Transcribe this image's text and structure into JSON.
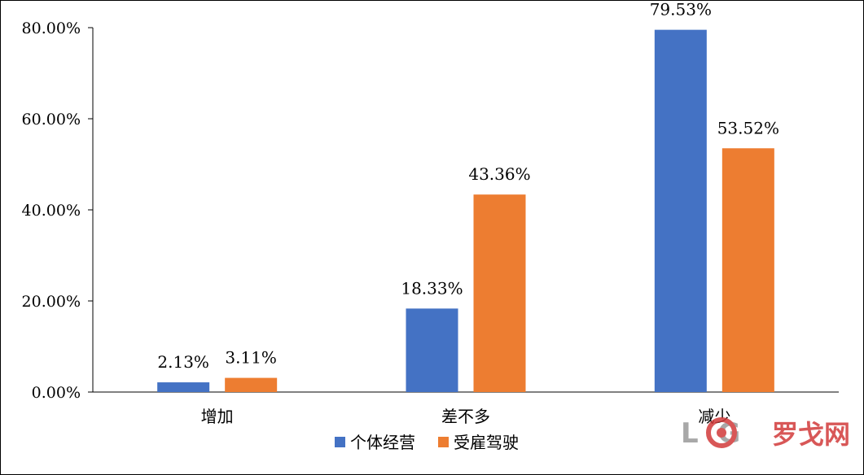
{
  "chart_data": {
    "type": "bar",
    "categories": [
      "增加",
      "差不多",
      "减少"
    ],
    "series": [
      {
        "name": "个体经营",
        "color": "#4472C4",
        "values": [
          2.13,
          18.33,
          79.53
        ],
        "labels": [
          "2.13%",
          "18.33%",
          "79.53%"
        ]
      },
      {
        "name": "受雇驾驶",
        "color": "#ED7D31",
        "values": [
          3.11,
          43.36,
          53.52
        ],
        "labels": [
          "3.11%",
          "43.36%",
          "53.52%"
        ]
      }
    ],
    "y_ticks": [
      0,
      20,
      40,
      60,
      80
    ],
    "y_tick_labels": [
      "0.00%",
      "20.00%",
      "40.00%",
      "60.00%",
      "80.00%"
    ],
    "ylim": [
      0,
      80
    ],
    "legend_position": "bottom",
    "grid": false
  },
  "watermark": {
    "text_latin": "L  G",
    "text_cn": "罗戈网",
    "icon": "target-ring-icon",
    "colors": {
      "latin": "#9a9a9a",
      "ring": "#d23a3a",
      "cn": "#d23a3a"
    }
  }
}
